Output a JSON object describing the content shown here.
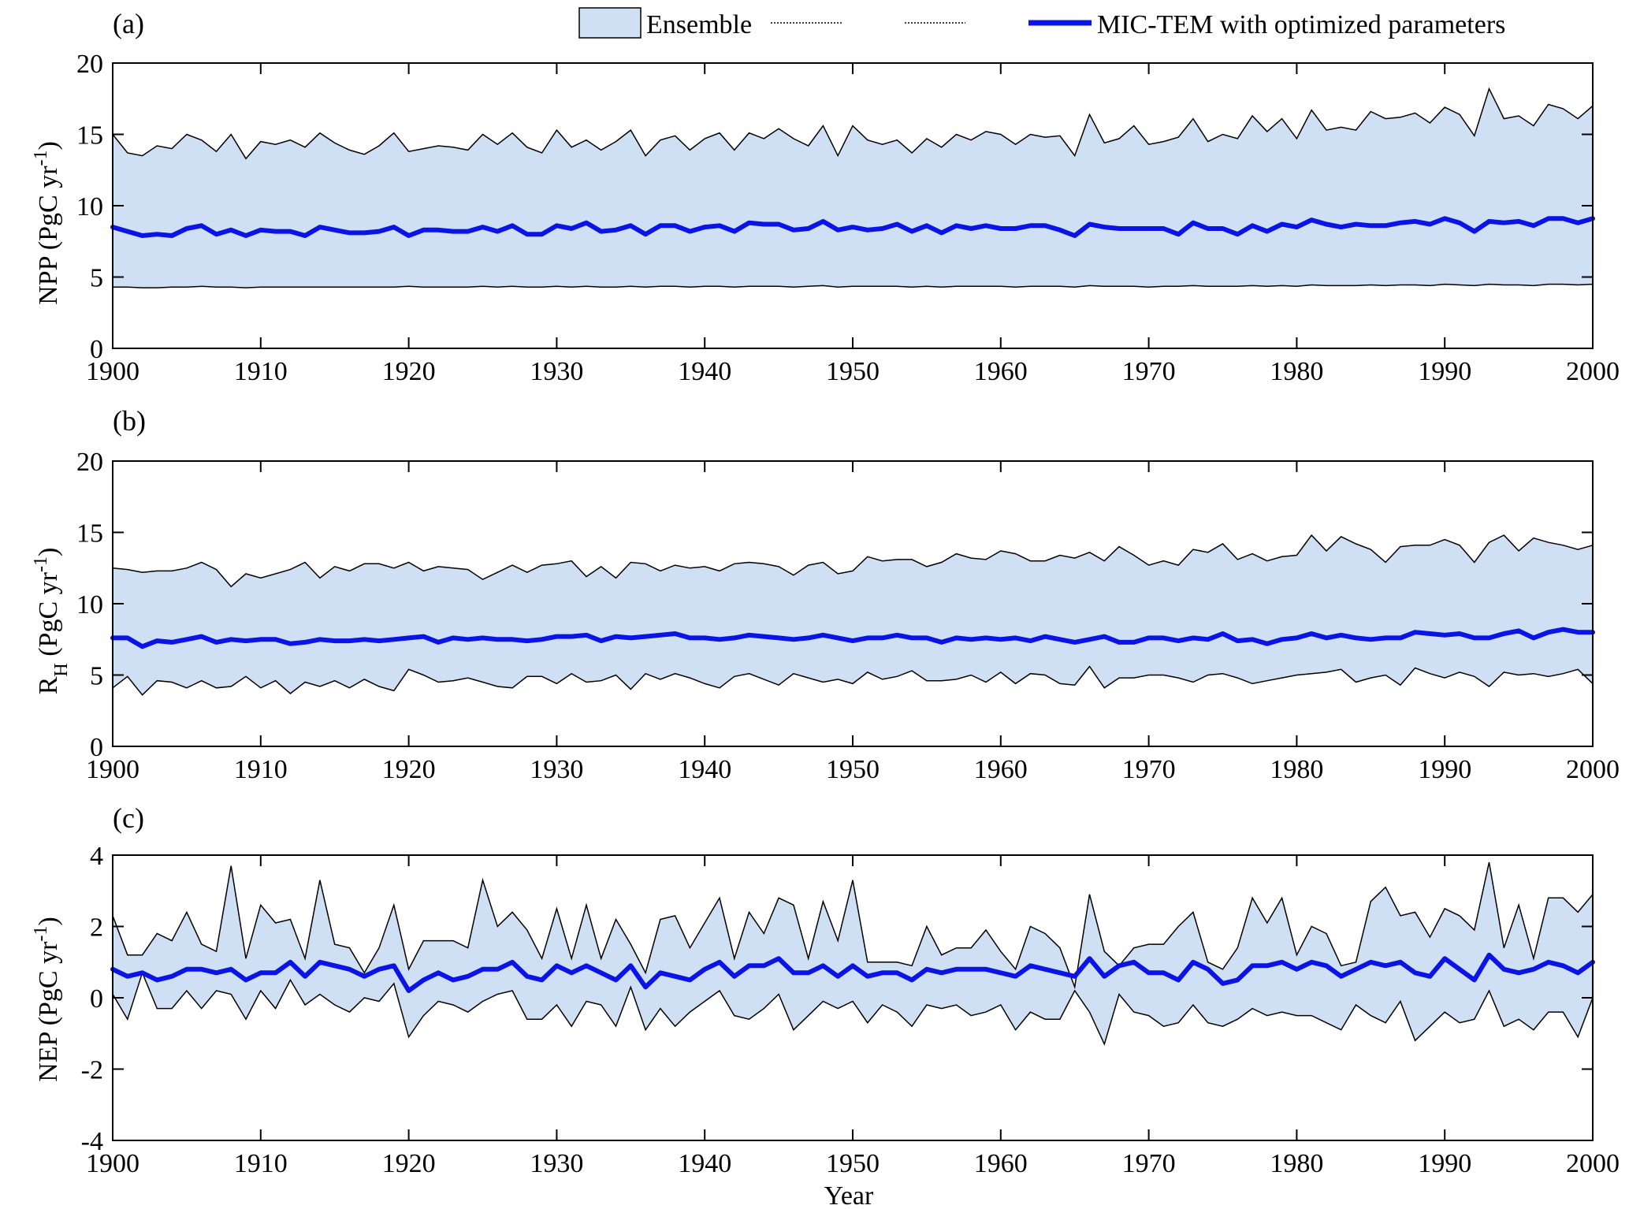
{
  "figure": {
    "legend": {
      "ensemble_label": "Ensemble",
      "optimized_label": "MIC-TEM with optimized parameters",
      "ensemble_fill": "#cfe0f5",
      "line_color": "#0a14e6",
      "bound_color": "#000000"
    },
    "xlabel": "Year"
  },
  "chart_data": [
    {
      "panel": "(a)",
      "type": "area",
      "ylabel": "NPP (PgC yr⁻¹)",
      "ylabel_parts": {
        "main": "NPP (PgC yr",
        "sup": "-1",
        "close": ")"
      },
      "xlim": [
        1900,
        2000
      ],
      "ylim": [
        0,
        20
      ],
      "xticks": [
        1900,
        1910,
        1920,
        1930,
        1940,
        1950,
        1960,
        1970,
        1980,
        1990,
        2000
      ],
      "yticks": [
        0,
        5,
        10,
        15,
        20
      ],
      "series": [
        {
          "name": "Ensemble",
          "kind": "band",
          "upper": [
            15.0,
            13.7,
            13.5,
            14.2,
            14.0,
            15.0,
            14.6,
            13.8,
            15.0,
            13.3,
            14.5,
            14.3,
            14.6,
            14.1,
            15.1,
            14.4,
            13.9,
            13.6,
            14.2,
            15.1,
            13.8,
            14.0,
            14.2,
            14.1,
            13.9,
            15.0,
            14.3,
            15.1,
            14.1,
            13.7,
            15.3,
            14.1,
            14.6,
            13.9,
            14.5,
            15.3,
            13.5,
            14.6,
            14.9,
            13.9,
            14.7,
            15.1,
            13.9,
            15.1,
            14.7,
            15.4,
            14.7,
            14.2,
            15.6,
            13.5,
            15.6,
            14.6,
            14.3,
            14.6,
            13.7,
            14.7,
            14.1,
            15.0,
            14.6,
            15.2,
            15.0,
            14.3,
            15.0,
            14.8,
            14.9,
            13.5,
            16.4,
            14.4,
            14.7,
            15.6,
            14.3,
            14.5,
            14.8,
            16.1,
            14.5,
            15.0,
            14.7,
            16.3,
            15.2,
            16.1,
            14.7,
            16.7,
            15.3,
            15.5,
            15.3,
            16.6,
            16.1,
            16.2,
            16.5,
            15.8,
            16.9,
            16.4,
            14.9,
            18.2,
            16.1,
            16.3,
            15.6,
            17.1,
            16.8,
            16.1,
            17.0
          ],
          "lower": [
            4.3,
            4.3,
            4.25,
            4.25,
            4.3,
            4.3,
            4.35,
            4.3,
            4.3,
            4.25,
            4.3,
            4.3,
            4.3,
            4.3,
            4.3,
            4.3,
            4.3,
            4.3,
            4.3,
            4.3,
            4.35,
            4.3,
            4.3,
            4.3,
            4.3,
            4.35,
            4.3,
            4.35,
            4.3,
            4.3,
            4.35,
            4.3,
            4.35,
            4.3,
            4.3,
            4.35,
            4.3,
            4.35,
            4.35,
            4.3,
            4.35,
            4.35,
            4.3,
            4.35,
            4.35,
            4.35,
            4.3,
            4.35,
            4.4,
            4.3,
            4.35,
            4.35,
            4.35,
            4.35,
            4.3,
            4.35,
            4.3,
            4.35,
            4.35,
            4.35,
            4.35,
            4.3,
            4.35,
            4.35,
            4.35,
            4.3,
            4.4,
            4.35,
            4.35,
            4.35,
            4.3,
            4.35,
            4.35,
            4.4,
            4.35,
            4.35,
            4.35,
            4.4,
            4.35,
            4.4,
            4.35,
            4.45,
            4.4,
            4.4,
            4.4,
            4.45,
            4.4,
            4.45,
            4.45,
            4.4,
            4.5,
            4.45,
            4.4,
            4.5,
            4.45,
            4.45,
            4.4,
            4.5,
            4.5,
            4.45,
            4.5
          ]
        },
        {
          "name": "MIC-TEM with optimized parameters",
          "kind": "line",
          "values": [
            8.5,
            8.2,
            7.9,
            8.0,
            7.9,
            8.4,
            8.6,
            8.0,
            8.3,
            7.9,
            8.3,
            8.2,
            8.2,
            7.9,
            8.5,
            8.3,
            8.1,
            8.1,
            8.2,
            8.5,
            7.9,
            8.3,
            8.3,
            8.2,
            8.2,
            8.5,
            8.2,
            8.6,
            8.0,
            8.0,
            8.6,
            8.4,
            8.8,
            8.2,
            8.3,
            8.6,
            8.0,
            8.6,
            8.6,
            8.2,
            8.5,
            8.6,
            8.2,
            8.8,
            8.7,
            8.7,
            8.3,
            8.4,
            8.9,
            8.3,
            8.5,
            8.3,
            8.4,
            8.7,
            8.2,
            8.6,
            8.1,
            8.6,
            8.4,
            8.6,
            8.4,
            8.4,
            8.6,
            8.6,
            8.3,
            7.9,
            8.7,
            8.5,
            8.4,
            8.4,
            8.4,
            8.4,
            8.0,
            8.8,
            8.4,
            8.4,
            8.0,
            8.6,
            8.2,
            8.7,
            8.5,
            9.0,
            8.7,
            8.5,
            8.7,
            8.6,
            8.6,
            8.8,
            8.9,
            8.7,
            9.1,
            8.8,
            8.2,
            8.9,
            8.8,
            8.9,
            8.6,
            9.1,
            9.1,
            8.8,
            9.1
          ]
        }
      ]
    },
    {
      "panel": "(b)",
      "type": "area",
      "ylabel": "R_H (PgC yr⁻¹)",
      "ylabel_parts": {
        "main": "R",
        "sub": "H",
        "rest": " (PgC yr",
        "sup": "-1",
        "close": ")"
      },
      "xlim": [
        1900,
        2000
      ],
      "ylim": [
        0,
        20
      ],
      "xticks": [
        1900,
        1910,
        1920,
        1930,
        1940,
        1950,
        1960,
        1970,
        1980,
        1990,
        2000
      ],
      "yticks": [
        0,
        5,
        10,
        15,
        20
      ],
      "series": [
        {
          "name": "Ensemble",
          "kind": "band",
          "upper": [
            12.5,
            12.4,
            12.2,
            12.3,
            12.3,
            12.5,
            12.9,
            12.4,
            11.2,
            12.1,
            11.8,
            12.1,
            12.4,
            12.9,
            11.8,
            12.6,
            12.3,
            12.8,
            12.8,
            12.5,
            12.9,
            12.3,
            12.6,
            12.5,
            12.4,
            11.7,
            12.2,
            12.7,
            12.2,
            12.7,
            12.8,
            13.0,
            11.9,
            12.6,
            11.8,
            12.9,
            12.8,
            12.3,
            12.7,
            12.5,
            12.6,
            12.3,
            12.8,
            12.9,
            12.8,
            12.6,
            12.0,
            12.7,
            12.9,
            12.1,
            12.3,
            13.3,
            13.0,
            13.1,
            13.1,
            12.6,
            12.9,
            13.5,
            13.2,
            13.1,
            13.7,
            13.5,
            13.0,
            13.0,
            13.4,
            13.2,
            13.6,
            13.0,
            14.0,
            13.4,
            12.7,
            13.0,
            12.7,
            13.8,
            13.6,
            14.2,
            13.1,
            13.5,
            13.0,
            13.3,
            13.4,
            14.8,
            13.7,
            14.7,
            14.2,
            13.8,
            12.9,
            14.0,
            14.1,
            14.1,
            14.5,
            14.1,
            12.9,
            14.3,
            14.8,
            13.7,
            14.6,
            14.3,
            14.1,
            13.8,
            14.1
          ],
          "lower": [
            4.1,
            4.9,
            3.6,
            4.6,
            4.5,
            4.1,
            4.6,
            4.1,
            4.2,
            4.9,
            4.1,
            4.6,
            3.7,
            4.5,
            4.2,
            4.6,
            4.1,
            4.7,
            4.2,
            3.9,
            5.4,
            5.0,
            4.5,
            4.6,
            4.8,
            4.5,
            4.2,
            4.1,
            4.9,
            4.9,
            4.4,
            5.1,
            4.5,
            4.6,
            5.0,
            4.0,
            5.1,
            4.7,
            5.1,
            4.8,
            4.4,
            4.1,
            4.9,
            5.1,
            4.7,
            4.3,
            5.1,
            4.8,
            4.5,
            4.7,
            4.4,
            5.2,
            4.7,
            4.9,
            5.3,
            4.6,
            4.6,
            4.7,
            5.0,
            4.5,
            5.2,
            4.4,
            5.1,
            5.0,
            4.4,
            4.3,
            5.6,
            4.1,
            4.8,
            4.8,
            5.0,
            5.0,
            4.8,
            4.5,
            5.0,
            5.1,
            4.8,
            4.4,
            4.6,
            4.8,
            5.0,
            5.1,
            5.2,
            5.4,
            4.5,
            4.8,
            5.0,
            4.3,
            5.5,
            5.1,
            4.8,
            5.2,
            4.9,
            4.2,
            5.2,
            5.0,
            5.1,
            4.9,
            5.1,
            5.4,
            4.4
          ]
        },
        {
          "name": "MIC-TEM with optimized parameters",
          "kind": "line",
          "values": [
            7.6,
            7.6,
            7.0,
            7.4,
            7.3,
            7.5,
            7.7,
            7.3,
            7.5,
            7.4,
            7.5,
            7.5,
            7.2,
            7.3,
            7.5,
            7.4,
            7.4,
            7.5,
            7.4,
            7.5,
            7.6,
            7.7,
            7.3,
            7.6,
            7.5,
            7.6,
            7.5,
            7.5,
            7.4,
            7.5,
            7.7,
            7.7,
            7.8,
            7.4,
            7.7,
            7.6,
            7.7,
            7.8,
            7.9,
            7.6,
            7.6,
            7.5,
            7.6,
            7.8,
            7.7,
            7.6,
            7.5,
            7.6,
            7.8,
            7.6,
            7.4,
            7.6,
            7.6,
            7.8,
            7.6,
            7.6,
            7.3,
            7.6,
            7.5,
            7.6,
            7.5,
            7.6,
            7.4,
            7.7,
            7.5,
            7.3,
            7.5,
            7.7,
            7.3,
            7.3,
            7.6,
            7.6,
            7.4,
            7.6,
            7.5,
            7.9,
            7.4,
            7.5,
            7.2,
            7.5,
            7.6,
            7.9,
            7.6,
            7.8,
            7.6,
            7.5,
            7.6,
            7.6,
            8.0,
            7.9,
            7.8,
            7.9,
            7.6,
            7.6,
            7.9,
            8.1,
            7.6,
            8.0,
            8.2,
            8.0,
            8.0
          ]
        }
      ]
    },
    {
      "panel": "(c)",
      "type": "area",
      "ylabel": "NEP (PgC yr⁻¹)",
      "ylabel_parts": {
        "main": "NEP (PgC yr",
        "sup": "-1",
        "close": ")"
      },
      "xlim": [
        1900,
        2000
      ],
      "ylim": [
        -4,
        4
      ],
      "xticks": [
        1900,
        1910,
        1920,
        1930,
        1940,
        1950,
        1960,
        1970,
        1980,
        1990,
        2000
      ],
      "yticks": [
        -4,
        -2,
        0,
        2,
        4
      ],
      "series": [
        {
          "name": "Ensemble",
          "kind": "band",
          "upper": [
            2.3,
            1.2,
            1.2,
            1.8,
            1.6,
            2.4,
            1.5,
            1.3,
            3.7,
            1.1,
            2.6,
            2.1,
            2.2,
            1.1,
            3.3,
            1.5,
            1.4,
            0.7,
            1.4,
            2.6,
            0.8,
            1.6,
            1.6,
            1.6,
            1.4,
            3.3,
            2.0,
            2.4,
            1.9,
            1.1,
            2.5,
            1.1,
            2.6,
            1.1,
            2.2,
            1.5,
            0.7,
            2.2,
            2.3,
            1.4,
            2.1,
            2.8,
            1.1,
            2.4,
            1.8,
            2.8,
            2.6,
            1.1,
            2.7,
            1.6,
            3.3,
            1.0,
            1.0,
            1.0,
            0.9,
            2.0,
            1.2,
            1.4,
            1.4,
            1.9,
            1.3,
            0.8,
            2.0,
            1.8,
            1.4,
            0.3,
            2.9,
            1.3,
            0.9,
            1.4,
            1.5,
            1.5,
            2.0,
            2.4,
            1.0,
            0.8,
            1.4,
            2.8,
            2.1,
            2.8,
            1.2,
            2.0,
            1.8,
            0.9,
            1.0,
            2.7,
            3.1,
            2.3,
            2.4,
            1.7,
            2.5,
            2.3,
            1.9,
            3.8,
            1.4,
            2.6,
            1.1,
            2.8,
            2.8,
            2.4,
            2.9
          ],
          "lower": [
            0.1,
            -0.6,
            0.7,
            -0.3,
            -0.3,
            0.2,
            -0.3,
            0.2,
            0.1,
            -0.6,
            0.2,
            -0.3,
            0.5,
            -0.2,
            0.1,
            -0.2,
            -0.4,
            0.0,
            -0.1,
            0.4,
            -1.1,
            -0.5,
            -0.1,
            -0.2,
            -0.4,
            -0.1,
            0.1,
            0.2,
            -0.6,
            -0.6,
            -0.2,
            -0.8,
            -0.1,
            -0.2,
            -0.8,
            0.3,
            -0.9,
            -0.3,
            -0.8,
            -0.4,
            -0.1,
            0.2,
            -0.5,
            -0.6,
            -0.3,
            0.1,
            -0.9,
            -0.5,
            -0.1,
            -0.3,
            -0.1,
            -0.7,
            -0.2,
            -0.4,
            -0.8,
            -0.2,
            -0.3,
            -0.2,
            -0.5,
            -0.4,
            -0.2,
            -0.9,
            -0.4,
            -0.6,
            -0.6,
            0.2,
            -0.4,
            -1.3,
            0.1,
            -0.4,
            -0.5,
            -0.8,
            -0.7,
            -0.2,
            -0.7,
            -0.8,
            -0.6,
            -0.3,
            -0.5,
            -0.4,
            -0.5,
            -0.5,
            -0.7,
            -0.9,
            -0.2,
            -0.5,
            -0.7,
            -0.1,
            -1.2,
            -0.8,
            -0.4,
            -0.7,
            -0.6,
            0.2,
            -0.8,
            -0.6,
            -0.9,
            -0.4,
            -0.4,
            -1.1,
            0.0
          ]
        },
        {
          "name": "MIC-TEM with optimized parameters",
          "kind": "line",
          "values": [
            0.8,
            0.6,
            0.7,
            0.5,
            0.6,
            0.8,
            0.8,
            0.7,
            0.8,
            0.5,
            0.7,
            0.7,
            1.0,
            0.6,
            1.0,
            0.9,
            0.8,
            0.6,
            0.8,
            0.9,
            0.2,
            0.5,
            0.7,
            0.5,
            0.6,
            0.8,
            0.8,
            1.0,
            0.6,
            0.5,
            0.9,
            0.7,
            0.9,
            0.7,
            0.5,
            0.9,
            0.3,
            0.7,
            0.6,
            0.5,
            0.8,
            1.0,
            0.6,
            0.9,
            0.9,
            1.1,
            0.7,
            0.7,
            0.9,
            0.6,
            0.9,
            0.6,
            0.7,
            0.7,
            0.5,
            0.8,
            0.7,
            0.8,
            0.8,
            0.8,
            0.7,
            0.6,
            0.9,
            0.8,
            0.7,
            0.6,
            1.1,
            0.6,
            0.9,
            1.0,
            0.7,
            0.7,
            0.5,
            1.0,
            0.8,
            0.4,
            0.5,
            0.9,
            0.9,
            1.0,
            0.8,
            1.0,
            0.9,
            0.6,
            0.8,
            1.0,
            0.9,
            1.0,
            0.7,
            0.6,
            1.1,
            0.8,
            0.5,
            1.2,
            0.8,
            0.7,
            0.8,
            1.0,
            0.9,
            0.7,
            1.0
          ]
        }
      ]
    }
  ]
}
